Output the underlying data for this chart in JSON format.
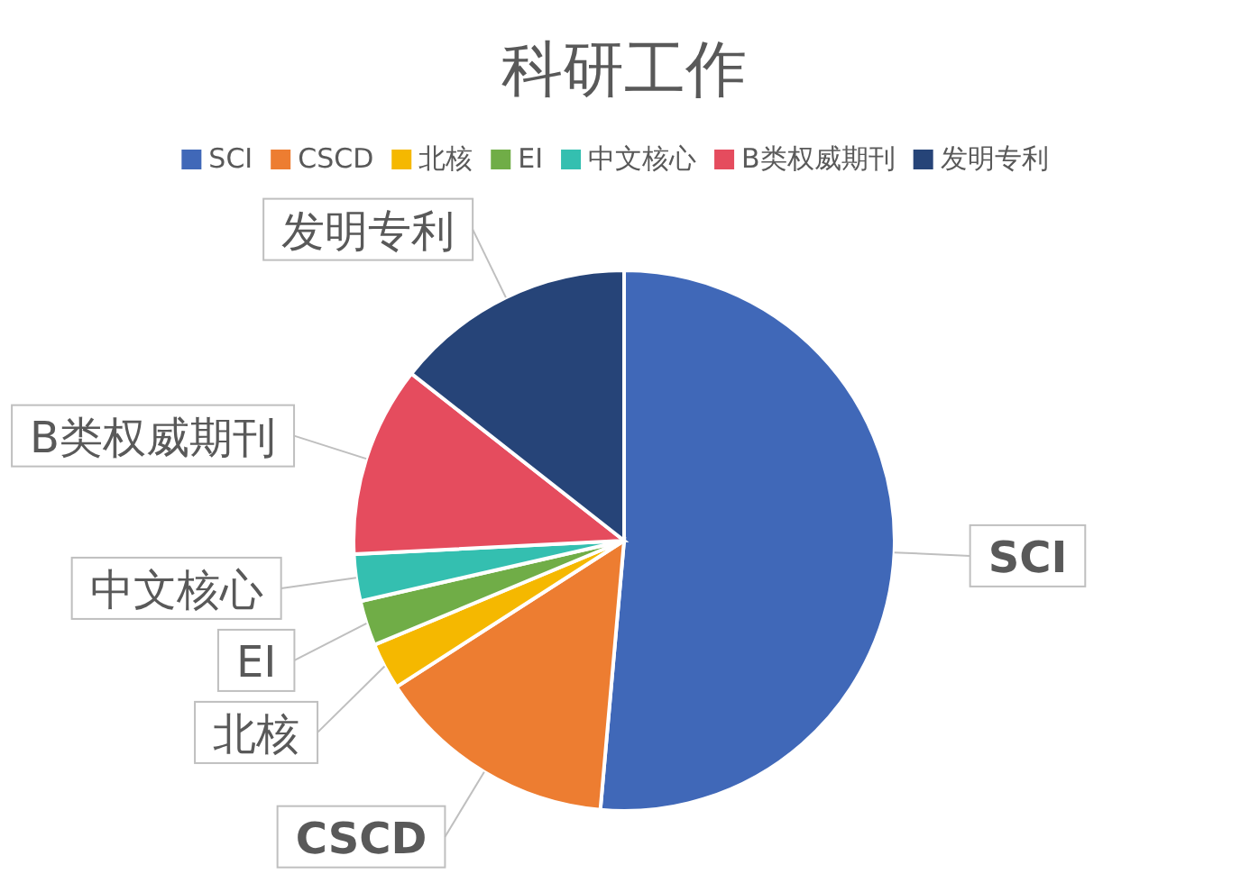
{
  "chart_data": {
    "type": "pie",
    "title": "科研工作",
    "categories": [
      "SCI",
      "CSCD",
      "北核",
      "EI",
      "中文核心",
      "B类权威期刊",
      "发明专利"
    ],
    "values": [
      51.4,
      14.5,
      2.8,
      2.7,
      2.8,
      11.4,
      14.4
    ],
    "colors": [
      "#4068b8",
      "#ed7d31",
      "#f5b800",
      "#70ad47",
      "#34bfb0",
      "#e54c5e",
      "#264478"
    ],
    "legend": "top"
  }
}
